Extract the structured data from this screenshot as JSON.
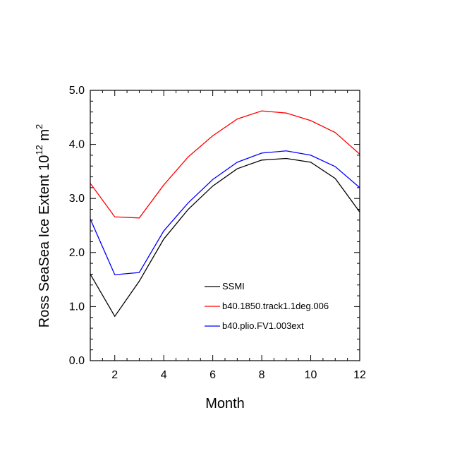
{
  "chart_data": {
    "type": "line",
    "title": "",
    "xlabel": "Month",
    "ylabel": {
      "main": "Ross SeaSea Ice Extent 10",
      "exp1": "12",
      "unit": " m",
      "exp2": "2"
    },
    "xlim": [
      1,
      12
    ],
    "ylim": [
      0,
      5
    ],
    "x": [
      1,
      2,
      3,
      4,
      5,
      6,
      7,
      8,
      9,
      10,
      11,
      12
    ],
    "x_ticks": [
      2,
      4,
      6,
      8,
      10,
      12
    ],
    "x_tick_labels": [
      "2",
      "4",
      "6",
      "8",
      "10",
      "12"
    ],
    "y_ticks": [
      0,
      1,
      2,
      3,
      4,
      5
    ],
    "y_tick_labels": [
      "0.0",
      "1.0",
      "2.0",
      "3.0",
      "4.0",
      "5.0"
    ],
    "legend_position": "bottom-right",
    "grid": false,
    "series": [
      {
        "name": "SSMI",
        "color": "#000000",
        "values": [
          1.6,
          0.82,
          1.47,
          2.25,
          2.8,
          3.23,
          3.55,
          3.71,
          3.74,
          3.67,
          3.37,
          2.75
        ]
      },
      {
        "name": "b40.1850.track1.1deg.006",
        "color": "#ff0000",
        "values": [
          3.28,
          2.66,
          2.64,
          3.25,
          3.77,
          4.16,
          4.47,
          4.62,
          4.58,
          4.44,
          4.22,
          3.82
        ]
      },
      {
        "name": "b40.plio.FV1.003ext",
        "color": "#0000ff",
        "values": [
          2.62,
          1.59,
          1.63,
          2.4,
          2.92,
          3.35,
          3.67,
          3.84,
          3.88,
          3.8,
          3.59,
          3.2
        ]
      }
    ]
  }
}
